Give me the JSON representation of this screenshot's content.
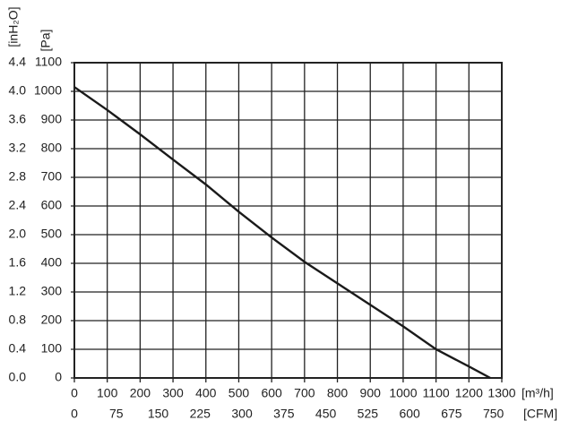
{
  "chart_data": {
    "type": "line",
    "x_label": "[m³/h]",
    "x2_label": "[CFM]",
    "y_label": "[Pa]",
    "y2_label": "[inH₂O]",
    "x": [
      0,
      100,
      200,
      300,
      400,
      500,
      600,
      700,
      800,
      900,
      1000,
      1100,
      1200,
      1265
    ],
    "series": [
      {
        "color": "#1a1a1a",
        "values": [
          1015,
          935,
          850,
          762,
          675,
          580,
          490,
          405,
          330,
          255,
          180,
          100,
          40,
          0
        ]
      }
    ],
    "xlim": [
      0,
      1300
    ],
    "xticks": [
      0,
      100,
      200,
      300,
      400,
      500,
      600,
      700,
      800,
      900,
      1000,
      1100,
      1200,
      1300
    ],
    "x2lim": [
      0,
      765
    ],
    "x2ticks": [
      0,
      75,
      150,
      225,
      300,
      375,
      450,
      525,
      600,
      675,
      750
    ],
    "ylim": [
      0,
      1100
    ],
    "yticks": [
      0,
      100,
      200,
      300,
      400,
      500,
      600,
      700,
      800,
      900,
      1000,
      1100
    ],
    "y2lim": [
      0,
      4.4
    ],
    "y2ticks": [
      {
        "value": 0,
        "label": "0.0"
      },
      {
        "value": 0.4,
        "label": "0.4"
      },
      {
        "value": 0.8,
        "label": "0.8"
      },
      {
        "value": 1.2,
        "label": "1.2"
      },
      {
        "value": 1.6,
        "label": "1.6"
      },
      {
        "value": 2.0,
        "label": "2.0"
      },
      {
        "value": 2.4,
        "label": "2.4"
      },
      {
        "value": 2.8,
        "label": "2.8"
      },
      {
        "value": 3.2,
        "label": "3.2"
      },
      {
        "value": 3.6,
        "label": "3.6"
      },
      {
        "value": 4.0,
        "label": "4.0"
      },
      {
        "value": 4.4,
        "label": "4.4"
      }
    ],
    "grid": true
  }
}
